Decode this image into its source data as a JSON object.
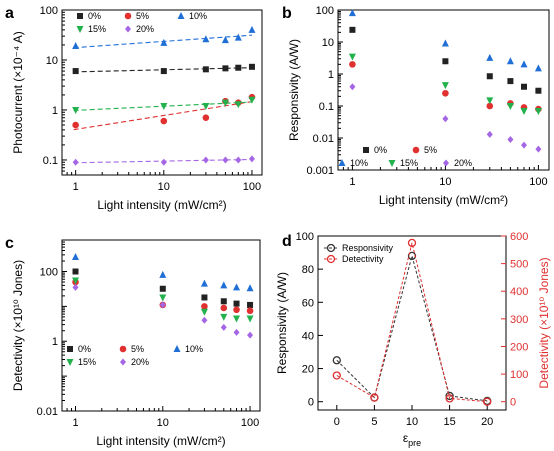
{
  "chart_data": [
    {
      "panel": "a",
      "type": "scatter",
      "xlabel": "Light intensity (mW/cm²)",
      "ylabel": "Photocurrent (×10⁻⁴ A)",
      "xscale": "log",
      "yscale": "log",
      "xlim": [
        0.7,
        130
      ],
      "ylim": [
        0.05,
        100
      ],
      "xticks": [
        "1",
        "10",
        "100"
      ],
      "yticks": [
        "0.1",
        "1",
        "10",
        "100"
      ],
      "legend_position": "top",
      "fit_lines": "dashed",
      "x": [
        1,
        10,
        30,
        50,
        70,
        100
      ],
      "series": [
        {
          "name": "0%",
          "color": "#222222",
          "marker": "square",
          "values": [
            6,
            6,
            6.5,
            6.8,
            7,
            7.3
          ]
        },
        {
          "name": "5%",
          "color": "#e03030",
          "marker": "circle",
          "values": [
            0.5,
            0.6,
            0.7,
            1.5,
            1.4,
            1.8
          ]
        },
        {
          "name": "10%",
          "color": "#1f6fd6",
          "marker": "triangle",
          "values": [
            19,
            22,
            26,
            25,
            28,
            40
          ]
        },
        {
          "name": "15%",
          "color": "#22b14c",
          "marker": "tri-down",
          "values": [
            1,
            1.2,
            1.2,
            1.4,
            1.3,
            1.6
          ]
        },
        {
          "name": "20%",
          "color": "#a566e6",
          "marker": "diamond",
          "values": [
            0.09,
            0.09,
            0.1,
            0.1,
            0.1,
            0.105
          ]
        }
      ]
    },
    {
      "panel": "b",
      "type": "scatter",
      "xlabel": "Light intensity (mW/cm²)",
      "ylabel": "Responsivity (A/W)",
      "xscale": "log",
      "yscale": "log",
      "xlim": [
        0.7,
        130
      ],
      "ylim": [
        0.001,
        100
      ],
      "xticks": [
        "1",
        "10",
        "100"
      ],
      "yticks": [
        "0.001",
        "0.01",
        "0.1",
        "1",
        "10",
        "100"
      ],
      "legend_position": "bottom-left",
      "x": [
        1,
        10,
        30,
        50,
        70,
        100
      ],
      "series": [
        {
          "name": "0%",
          "color": "#222222",
          "marker": "square",
          "values": [
            24,
            2.5,
            0.85,
            0.6,
            0.4,
            0.3
          ]
        },
        {
          "name": "5%",
          "color": "#e03030",
          "marker": "circle",
          "values": [
            2,
            0.25,
            0.1,
            0.12,
            0.09,
            0.08
          ]
        },
        {
          "name": "10%",
          "color": "#1f6fd6",
          "marker": "triangle",
          "values": [
            80,
            9,
            3.2,
            2.5,
            2,
            1.5
          ]
        },
        {
          "name": "15%",
          "color": "#22b14c",
          "marker": "tri-down",
          "values": [
            3.5,
            0.45,
            0.15,
            0.1,
            0.07,
            0.07
          ]
        },
        {
          "name": "20%",
          "color": "#a566e6",
          "marker": "diamond",
          "values": [
            0.4,
            0.04,
            0.013,
            0.009,
            0.006,
            0.0045
          ]
        }
      ]
    },
    {
      "panel": "c",
      "type": "scatter",
      "xlabel": "Light intensity (mW/cm²)",
      "ylabel": "Detectivity (×10¹⁰ Jones)",
      "xscale": "log",
      "yscale": "log",
      "xlim": [
        0.7,
        130
      ],
      "ylim": [
        0.01,
        800
      ],
      "xticks": [
        "1",
        "10",
        "100"
      ],
      "yticks": [
        "0.01",
        "1",
        "100"
      ],
      "legend_position": "bottom",
      "x": [
        1,
        10,
        30,
        50,
        70,
        100
      ],
      "series": [
        {
          "name": "0%",
          "color": "#222222",
          "marker": "square",
          "values": [
            100,
            32,
            18,
            14,
            12,
            11
          ]
        },
        {
          "name": "5%",
          "color": "#e03030",
          "marker": "circle",
          "values": [
            50,
            11,
            10,
            9,
            8,
            7.5
          ]
        },
        {
          "name": "10%",
          "color": "#1f6fd6",
          "marker": "triangle",
          "values": [
            260,
            80,
            45,
            40,
            35,
            33
          ]
        },
        {
          "name": "15%",
          "color": "#22b14c",
          "marker": "tri-down",
          "values": [
            55,
            18,
            7,
            5,
            4.5,
            4.5
          ]
        },
        {
          "name": "20%",
          "color": "#a566e6",
          "marker": "diamond",
          "values": [
            35,
            11,
            4,
            2.5,
            1.8,
            1.5
          ]
        }
      ]
    },
    {
      "panel": "d",
      "type": "line",
      "xlabel": "εpre",
      "ylabel": "Responsivity (A/W)",
      "ylabel2": "Detectivity (×10¹⁰ Jones)",
      "xlim": [
        -2.5,
        22.5
      ],
      "ylim": [
        -5,
        100
      ],
      "ylim2": [
        -30,
        600
      ],
      "xticks": [
        "0",
        "5",
        "10",
        "15",
        "20"
      ],
      "yticks": [
        "0",
        "20",
        "40",
        "60",
        "80",
        "100"
      ],
      "yticks2": [
        "0",
        "100",
        "200",
        "300",
        "400",
        "500",
        "600"
      ],
      "legend_position": "top-left",
      "line_style": "dashed",
      "x": [
        0,
        5,
        10,
        15,
        20
      ],
      "series": [
        {
          "name": "Responsivity",
          "color": "#333333",
          "marker": "circle-open",
          "axis": "left",
          "values": [
            25,
            2.5,
            88,
            3.5,
            0.5
          ]
        },
        {
          "name": "Detectivity",
          "color": "#e03030",
          "marker": "circle-open",
          "axis": "right",
          "values": [
            95,
            15,
            575,
            12,
            0
          ]
        }
      ]
    }
  ]
}
